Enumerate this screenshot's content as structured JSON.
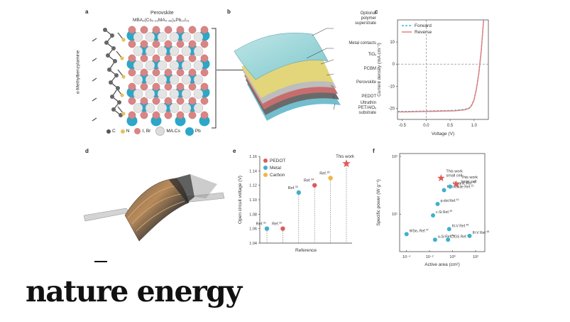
{
  "panels": {
    "a": {
      "label": "a",
      "title": "Perovskite",
      "formula": "MBA₂(Cs₀.₁₂MA₀.₈₈)₉Pb₁₀I₃₁",
      "side_label": "α-Methylbenzylamine",
      "legend": [
        {
          "label": "C",
          "color": "#555555"
        },
        {
          "label": "N",
          "color": "#e6c15a"
        },
        {
          "label": "I, Br",
          "color": "#d98585"
        },
        {
          "label": "MA,Cs",
          "color": "#dcdcdc"
        },
        {
          "label": "Pb",
          "color": "#2aa7c9"
        }
      ]
    },
    "b": {
      "label": "b",
      "layers": [
        "Optional polymer superstrate",
        "Metal contacts",
        "TiOₓ",
        "PCBM",
        "Perovskite",
        "PEDOT",
        "Ultrathin PET/AlOₓ substrate"
      ]
    },
    "c": {
      "label": "c",
      "legend": [
        "Forward",
        "Reverse"
      ]
    },
    "d": {
      "label": "d"
    },
    "e": {
      "label": "e"
    },
    "f": {
      "label": "f"
    }
  },
  "chart_data": [
    {
      "id": "c",
      "type": "line",
      "xlabel": "Voltage (V)",
      "ylabel": "Current density (mA cm⁻²)",
      "xlim": [
        -0.6,
        1.3
      ],
      "ylim": [
        -25,
        20
      ],
      "xticks": [
        "-0.5",
        "0.0",
        "0.5",
        "1.0"
      ],
      "yticks": [
        "10",
        "0",
        "-10",
        "-20"
      ],
      "series": [
        {
          "name": "Forward",
          "color": "#3fb8d6",
          "style": "dashed",
          "x": [
            -0.6,
            -0.4,
            -0.2,
            0.0,
            0.2,
            0.4,
            0.6,
            0.8,
            0.9,
            0.95,
            1.0,
            1.05,
            1.1,
            1.15,
            1.2
          ],
          "y": [
            -21.4,
            -21.4,
            -21.3,
            -21.2,
            -21.1,
            -21.0,
            -20.9,
            -20.5,
            -19.8,
            -18.5,
            -16,
            -11,
            -4,
            6,
            20
          ]
        },
        {
          "name": "Reverse",
          "color": "#e27a7a",
          "style": "solid",
          "x": [
            -0.6,
            -0.4,
            -0.2,
            0.0,
            0.2,
            0.4,
            0.6,
            0.8,
            0.9,
            0.95,
            1.0,
            1.05,
            1.1,
            1.15,
            1.2
          ],
          "y": [
            -21.6,
            -21.6,
            -21.5,
            -21.4,
            -21.3,
            -21.2,
            -21.1,
            -20.7,
            -20.0,
            -18.7,
            -16.3,
            -11.3,
            -4.3,
            5.7,
            20
          ]
        }
      ]
    },
    {
      "id": "e",
      "type": "scatter",
      "xlabel": "Reference",
      "ylabel": "Open circuit voltage (V)",
      "ylim": [
        1.04,
        1.16
      ],
      "yticks": [
        "1.16",
        "1.14",
        "1.12",
        "1.10",
        "1.08",
        "1.06",
        "1.04"
      ],
      "legend": [
        {
          "name": "PEDOT",
          "color": "#e05a5a"
        },
        {
          "name": "Metal",
          "color": "#3fb0cc"
        },
        {
          "name": "Carbon",
          "color": "#f1b63f"
        }
      ],
      "points": [
        {
          "label": "Ref.",
          "ref": "31",
          "value": 1.06,
          "kind": "Metal"
        },
        {
          "label": "Ref.",
          "ref": "32",
          "value": 1.06,
          "kind": "PEDOT"
        },
        {
          "label": "Ref.",
          "ref": "33",
          "value": 1.11,
          "kind": "Metal"
        },
        {
          "label": "Ref.",
          "ref": "34",
          "value": 1.12,
          "kind": "PEDOT"
        },
        {
          "label": "Ref.",
          "ref": "35",
          "value": 1.13,
          "kind": "Carbon"
        },
        {
          "label": "This work",
          "ref": "",
          "value": 1.15,
          "kind": "star"
        }
      ]
    },
    {
      "id": "f",
      "type": "scatter",
      "xlabel": "Active area (cm²)",
      "ylabel": "Specific power (W g⁻¹)",
      "xscale": "log",
      "yscale": "log",
      "xticks": [
        "10⁻⁴",
        "10⁻²",
        "10⁰",
        "10²"
      ],
      "yticks": [
        "10²",
        "10¹"
      ],
      "points": [
        {
          "label": "WSe₂ Ref.",
          "ref": "47",
          "x": 0.0001,
          "y": 4.5,
          "kind": "circle"
        },
        {
          "label": "a-Si Ref.",
          "ref": "44",
          "x": 0.03,
          "y": 3.6,
          "kind": "circle"
        },
        {
          "label": "c-Si Ref.",
          "ref": "39",
          "x": 0.02,
          "y": 9.5,
          "kind": "circle"
        },
        {
          "label": "q-dot Ref.",
          "ref": "43",
          "x": 0.05,
          "y": 15,
          "kind": "circle"
        },
        {
          "label": "Perovskite Ref.",
          "ref": "13",
          "x": 0.18,
          "y": 26,
          "kind": "circle"
        },
        {
          "label": "Organic Ref.",
          "ref": "42",
          "x": 0.6,
          "y": 30,
          "kind": "circle"
        },
        {
          "label": "III-V Ref.",
          "ref": "46",
          "x": 0.5,
          "y": 5.5,
          "kind": "circle"
        },
        {
          "label": "CIGS Ref.",
          "ref": "45",
          "x": 0.4,
          "y": 3.6,
          "kind": "circle"
        },
        {
          "label": "III-V Ref.",
          "ref": "48",
          "x": 30,
          "y": 4.2,
          "kind": "circle"
        },
        {
          "label": "This work small cell",
          "ref": "",
          "x": 0.1,
          "y": 42,
          "kind": "star"
        },
        {
          "label": "This work large cell",
          "ref": "",
          "x": 2.0,
          "y": 33,
          "kind": "star"
        }
      ]
    }
  ],
  "footer": {
    "logo_text": "nature energy"
  }
}
